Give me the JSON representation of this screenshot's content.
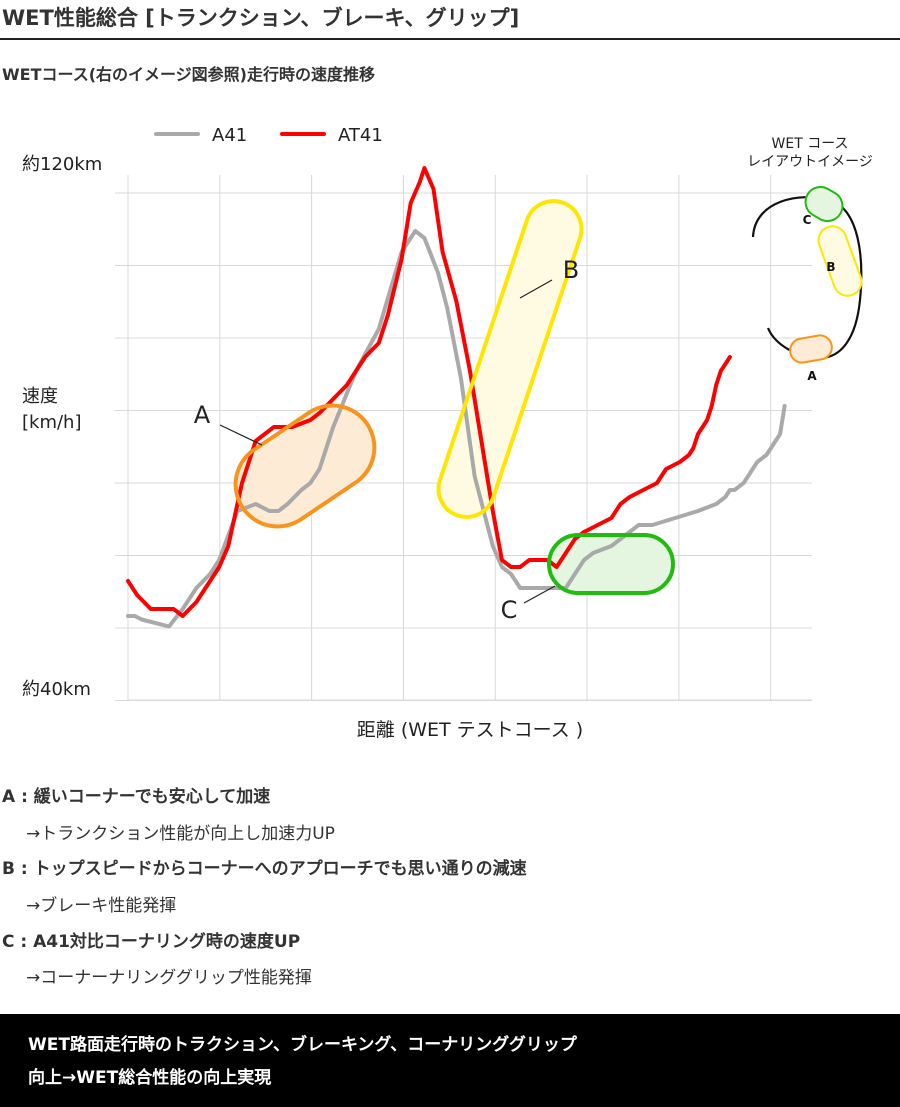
{
  "header": {
    "title": "WET性能総合 [トランクション、ブレーキ、グリップ]"
  },
  "subtitle": "WETコース(右のイメージ図参照)走行時の速度推移",
  "chart_data": {
    "type": "line",
    "ylabel": "速度\n[km/h]",
    "ylabel_lines": [
      "速度",
      "[km/h]"
    ],
    "xlabel": "距離 (WET テストコース )",
    "y_top_label": "約120km",
    "y_bottom_label": "約40km",
    "ylim": [
      40,
      120
    ],
    "grid": true,
    "legend_position": "top-left",
    "series": [
      {
        "name": "A41",
        "color": "#a9a9a9",
        "x": [
          0,
          1.5,
          3,
          6,
          9,
          12,
          15,
          18,
          20,
          24,
          28,
          31,
          33,
          35,
          38,
          40,
          42,
          45,
          50,
          55,
          60,
          63,
          65,
          68,
          70,
          73,
          76,
          80,
          82,
          84,
          85,
          86,
          87,
          89,
          90,
          92,
          94,
          96,
          97,
          98,
          100,
          102,
          104,
          106,
          108,
          110,
          112,
          115,
          120,
          125,
          129,
          131,
          132,
          133,
          135,
          136,
          137,
          138,
          140,
          141,
          142,
          143,
          144
        ],
        "y": [
          52,
          52,
          51.5,
          51,
          50.5,
          53,
          56,
          58,
          60,
          67,
          68,
          67,
          67,
          68,
          70,
          71,
          73,
          79,
          87,
          93,
          104,
          107,
          106,
          101,
          96,
          86,
          72,
          62,
          59,
          58,
          57,
          56,
          56,
          56,
          56,
          56,
          56,
          56,
          57,
          58,
          60,
          61,
          61.5,
          62,
          63,
          64,
          65,
          65,
          66,
          67,
          68,
          69,
          70,
          70,
          71,
          72,
          73,
          74,
          75,
          76,
          77,
          78,
          82
        ]
      },
      {
        "name": "AT41",
        "color": "#ff0000",
        "x": [
          0,
          2,
          5,
          10,
          12,
          15,
          18,
          20,
          22,
          25,
          28,
          32,
          36,
          40,
          42,
          45,
          48,
          52,
          55,
          57,
          60,
          62,
          64,
          65,
          67,
          69,
          72,
          75,
          78,
          80,
          82,
          84,
          86,
          88,
          92,
          94,
          96,
          98,
          100,
          103,
          106,
          108,
          110,
          113,
          116,
          118,
          121,
          123,
          124,
          125,
          126,
          127,
          128,
          129,
          130,
          131,
          132
        ],
        "y": [
          57,
          55,
          53,
          53,
          52,
          54,
          57,
          59,
          62,
          71,
          77,
          79,
          79,
          80,
          81,
          83,
          85,
          89,
          91,
          95,
          103,
          111,
          114,
          116,
          113,
          104,
          97,
          87,
          75,
          67,
          60,
          59,
          59,
          60,
          60,
          59,
          61,
          63,
          64,
          65,
          66,
          68,
          69,
          70,
          71,
          73,
          74,
          75,
          76,
          78,
          79,
          80,
          82,
          85,
          87,
          88,
          89
        ]
      }
    ],
    "highlights": [
      {
        "label": "A",
        "color": "#f7941d"
      },
      {
        "label": "B",
        "color": "#ffe600"
      },
      {
        "label": "C",
        "color": "#22bb11"
      }
    ]
  },
  "inset": {
    "title_lines": [
      "WET コース",
      "レイアウトイメージ"
    ],
    "labels": [
      "C",
      "B",
      "A"
    ]
  },
  "notes": [
    {
      "head": "A : 緩いコーナーでも安心して加速",
      "sub": "→トランクション性能が向上し加速力UP"
    },
    {
      "head": "B : トップスピードからコーナーへのアプローチでも思い通りの減速",
      "sub": "→ブレーキ性能発揮"
    },
    {
      "head": "C : A41対比コーナリング時の速度UP",
      "sub": "→コーナーナリンググリップ性能発揮"
    }
  ],
  "footer": {
    "line1": "WET路面走行時のトラクション、ブレーキング、コーナリンググリップ",
    "line2": "向上→WET総合性能の向上実現"
  }
}
